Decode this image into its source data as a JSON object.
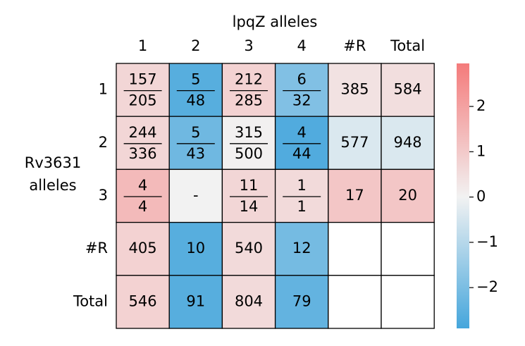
{
  "chart_data": {
    "type": "heatmap",
    "x_label": "lpqZ alleles",
    "y_label": [
      "Rv3631",
      "alleles"
    ],
    "columns": [
      "1",
      "2",
      "3",
      "4",
      "#R",
      "Total"
    ],
    "rows": [
      "1",
      "2",
      "3",
      "#R",
      "Total"
    ],
    "cells": [
      [
        {
          "num": 157,
          "den": 205,
          "value": 0.7
        },
        {
          "num": 5,
          "den": 48,
          "value": -2.6
        },
        {
          "num": 212,
          "den": 285,
          "value": 0.8
        },
        {
          "num": 6,
          "den": 32,
          "value": -1.9
        },
        {
          "label": 385,
          "value": 0.4
        },
        {
          "label": 584,
          "value": 0.5
        }
      ],
      [
        {
          "num": 244,
          "den": 336,
          "value": 0.7
        },
        {
          "num": 5,
          "den": 43,
          "value": -2.2
        },
        {
          "num": 315,
          "den": 500,
          "value": 0.05
        },
        {
          "num": 4,
          "den": 44,
          "value": -2.7
        },
        {
          "label": 577,
          "value": -0.4
        },
        {
          "label": 948,
          "value": -0.4
        }
      ],
      [
        {
          "num": 4,
          "den": 4,
          "value": 1.4
        },
        {
          "label": "-",
          "value": 0
        },
        {
          "num": 11,
          "den": 14,
          "value": 0.7
        },
        {
          "num": 1,
          "den": 1,
          "value": 0.6
        },
        {
          "label": 17,
          "value": 1.1
        },
        {
          "label": 20,
          "value": 1.1
        }
      ],
      [
        {
          "label": 405,
          "value": 0.8
        },
        {
          "label": 10,
          "value": -2.6
        },
        {
          "label": 540,
          "value": 0.6
        },
        {
          "label": 12,
          "value": -2.1
        },
        null,
        null
      ],
      [
        {
          "label": 546,
          "value": 0.8
        },
        {
          "label": 91,
          "value": -2.6
        },
        {
          "label": 804,
          "value": 0.6
        },
        {
          "label": 79,
          "value": -2.4
        },
        null,
        null
      ]
    ],
    "colormap": [
      "#45a6dc",
      "#f2f2f2",
      "#f47b7b"
    ],
    "clim": [
      -2.9,
      2.95
    ],
    "cticks": [
      {
        "value": -2,
        "label": "−2"
      },
      {
        "value": -1,
        "label": "−1"
      },
      0,
      1,
      2
    ]
  }
}
